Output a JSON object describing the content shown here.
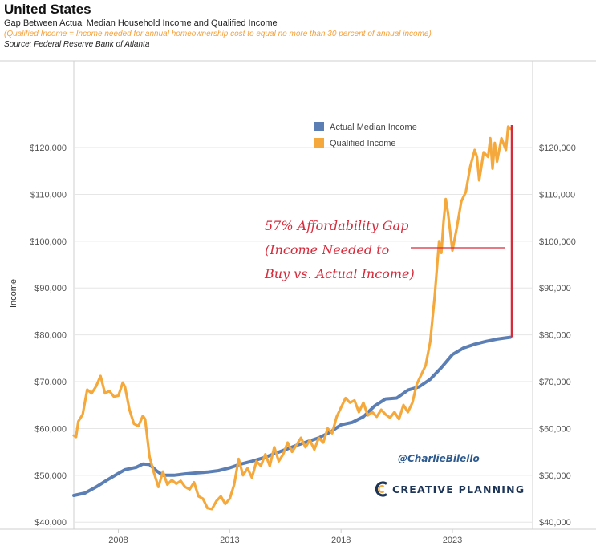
{
  "header": {
    "title": "United States",
    "subtitle": "Gap Between Actual Median Household Income and Qualified Income",
    "note": "(Qualified Income = Income needed for annual homeownership cost to equal no more than 30 percent of annual income)",
    "source": "Source: Federal Reserve Bank of Atlanta"
  },
  "colors": {
    "actual": "#5b7fb4",
    "qualified": "#f5a93c",
    "gap": "#d62b3b",
    "grid": "#e6e6e6",
    "frame": "#cfcfcf"
  },
  "chart_data": {
    "type": "line",
    "ylabel": "Income",
    "xlim": [
      2006,
      2026.6
    ],
    "ylim": [
      38500,
      138500
    ],
    "y_ticks": [
      "$40,000",
      "$50,000",
      "$60,000",
      "$70,000",
      "$80,000",
      "$90,000",
      "$100,000",
      "$110,000",
      "$120,000"
    ],
    "y_tick_values": [
      40000,
      50000,
      60000,
      70000,
      80000,
      90000,
      100000,
      110000,
      120000
    ],
    "x_ticks": [
      "2008",
      "2013",
      "2018",
      "2023"
    ],
    "x_tick_values": [
      2008,
      2013,
      2018,
      2023
    ],
    "legend": [
      "Actual Median Income",
      "Qualified Income"
    ],
    "series": [
      {
        "name": "Actual Median Income",
        "points": [
          [
            2006.0,
            45700
          ],
          [
            2006.5,
            46200
          ],
          [
            2007.0,
            47500
          ],
          [
            2007.5,
            49000
          ],
          [
            2008.0,
            50400
          ],
          [
            2008.3,
            51200
          ],
          [
            2008.8,
            51700
          ],
          [
            2009.1,
            52400
          ],
          [
            2009.4,
            52300
          ],
          [
            2009.7,
            51000
          ],
          [
            2010.0,
            50000
          ],
          [
            2010.5,
            50000
          ],
          [
            2011.0,
            50300
          ],
          [
            2011.5,
            50500
          ],
          [
            2012.0,
            50700
          ],
          [
            2012.5,
            51000
          ],
          [
            2013.0,
            51600
          ],
          [
            2013.5,
            52400
          ],
          [
            2014.0,
            53000
          ],
          [
            2014.5,
            53700
          ],
          [
            2015.0,
            54600
          ],
          [
            2015.5,
            55500
          ],
          [
            2016.0,
            56400
          ],
          [
            2016.5,
            57200
          ],
          [
            2017.0,
            58000
          ],
          [
            2017.5,
            59200
          ],
          [
            2018.0,
            60800
          ],
          [
            2018.5,
            61300
          ],
          [
            2019.0,
            62500
          ],
          [
            2019.5,
            64800
          ],
          [
            2020.0,
            66300
          ],
          [
            2020.5,
            66500
          ],
          [
            2021.0,
            68200
          ],
          [
            2021.5,
            68900
          ],
          [
            2022.0,
            70500
          ],
          [
            2022.5,
            73000
          ],
          [
            2023.0,
            75800
          ],
          [
            2023.5,
            77200
          ],
          [
            2024.0,
            78000
          ],
          [
            2024.5,
            78600
          ],
          [
            2025.0,
            79100
          ],
          [
            2025.6,
            79500
          ]
        ]
      },
      {
        "name": "Qualified Income",
        "points": [
          [
            2006.0,
            58500
          ],
          [
            2006.1,
            58200
          ],
          [
            2006.2,
            61500
          ],
          [
            2006.4,
            63000
          ],
          [
            2006.6,
            68300
          ],
          [
            2006.8,
            67500
          ],
          [
            2007.0,
            69000
          ],
          [
            2007.2,
            71200
          ],
          [
            2007.4,
            67500
          ],
          [
            2007.6,
            68000
          ],
          [
            2007.8,
            66800
          ],
          [
            2008.0,
            67000
          ],
          [
            2008.2,
            69800
          ],
          [
            2008.3,
            68800
          ],
          [
            2008.5,
            64000
          ],
          [
            2008.7,
            61000
          ],
          [
            2008.9,
            60500
          ],
          [
            2009.1,
            62700
          ],
          [
            2009.2,
            62000
          ],
          [
            2009.4,
            54000
          ],
          [
            2009.6,
            50500
          ],
          [
            2009.8,
            47500
          ],
          [
            2010.0,
            50800
          ],
          [
            2010.2,
            48000
          ],
          [
            2010.4,
            49000
          ],
          [
            2010.6,
            48200
          ],
          [
            2010.8,
            48800
          ],
          [
            2011.0,
            47500
          ],
          [
            2011.2,
            47000
          ],
          [
            2011.4,
            48500
          ],
          [
            2011.6,
            45500
          ],
          [
            2011.8,
            45000
          ],
          [
            2012.0,
            43000
          ],
          [
            2012.2,
            42800
          ],
          [
            2012.4,
            44500
          ],
          [
            2012.6,
            45500
          ],
          [
            2012.8,
            43900
          ],
          [
            2013.0,
            45000
          ],
          [
            2013.2,
            48000
          ],
          [
            2013.4,
            53500
          ],
          [
            2013.6,
            50000
          ],
          [
            2013.8,
            51500
          ],
          [
            2014.0,
            49500
          ],
          [
            2014.2,
            53000
          ],
          [
            2014.4,
            52000
          ],
          [
            2014.6,
            54500
          ],
          [
            2014.8,
            52000
          ],
          [
            2015.0,
            56000
          ],
          [
            2015.2,
            53000
          ],
          [
            2015.4,
            54500
          ],
          [
            2015.6,
            57000
          ],
          [
            2015.8,
            55000
          ],
          [
            2016.0,
            56500
          ],
          [
            2016.2,
            58000
          ],
          [
            2016.4,
            56000
          ],
          [
            2016.6,
            57500
          ],
          [
            2016.8,
            55500
          ],
          [
            2017.0,
            58000
          ],
          [
            2017.2,
            57000
          ],
          [
            2017.4,
            60000
          ],
          [
            2017.6,
            59000
          ],
          [
            2017.8,
            62500
          ],
          [
            2018.0,
            64500
          ],
          [
            2018.2,
            66500
          ],
          [
            2018.4,
            65500
          ],
          [
            2018.6,
            66000
          ],
          [
            2018.8,
            63500
          ],
          [
            2019.0,
            65500
          ],
          [
            2019.2,
            62800
          ],
          [
            2019.4,
            63500
          ],
          [
            2019.6,
            62500
          ],
          [
            2019.8,
            64000
          ],
          [
            2020.0,
            63000
          ],
          [
            2020.2,
            62300
          ],
          [
            2020.4,
            63500
          ],
          [
            2020.6,
            62000
          ],
          [
            2020.8,
            65000
          ],
          [
            2021.0,
            63500
          ],
          [
            2021.2,
            65500
          ],
          [
            2021.4,
            69500
          ],
          [
            2021.6,
            71500
          ],
          [
            2021.8,
            73500
          ],
          [
            2022.0,
            78500
          ],
          [
            2022.2,
            88000
          ],
          [
            2022.3,
            94000
          ],
          [
            2022.4,
            100000
          ],
          [
            2022.5,
            97500
          ],
          [
            2022.6,
            104000
          ],
          [
            2022.7,
            109000
          ],
          [
            2022.8,
            106000
          ],
          [
            2022.9,
            102000
          ],
          [
            2023.0,
            98000
          ],
          [
            2023.2,
            103000
          ],
          [
            2023.4,
            108500
          ],
          [
            2023.6,
            110500
          ],
          [
            2023.8,
            116000
          ],
          [
            2024.0,
            119500
          ],
          [
            2024.1,
            118000
          ],
          [
            2024.2,
            113000
          ],
          [
            2024.4,
            119000
          ],
          [
            2024.6,
            118000
          ],
          [
            2024.7,
            122000
          ],
          [
            2024.8,
            115500
          ],
          [
            2024.9,
            121000
          ],
          [
            2025.0,
            117000
          ],
          [
            2025.2,
            122000
          ],
          [
            2025.4,
            119500
          ],
          [
            2025.5,
            124500
          ],
          [
            2025.6,
            124000
          ]
        ]
      }
    ],
    "annotation": {
      "lines": [
        "57% Affordability Gap",
        "(Income Needed to",
        "Buy vs. Actual Income)"
      ],
      "gap_x": 2025.6,
      "gap_from": 79500,
      "gap_to": 124800
    },
    "watermark": {
      "handle": "@CharlieBilello",
      "brand": "CREATIVE PLANNING"
    }
  }
}
